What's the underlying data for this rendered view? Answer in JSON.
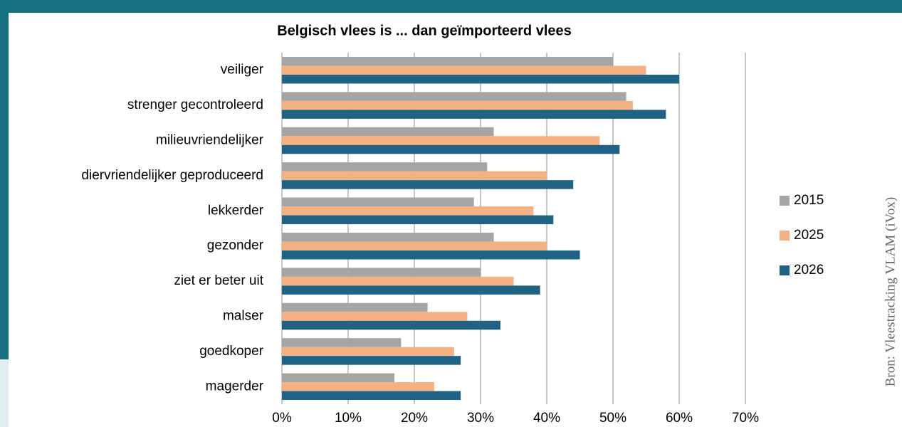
{
  "chart_data": {
    "type": "bar",
    "orientation": "horizontal",
    "title": "Belgisch vlees is ... dan geïmporteerd vlees",
    "source": "Bron: Vleestracking VLAM (iVox)",
    "categories": [
      "veiliger",
      "strenger gecontroleerd",
      "milieuvriendelijker",
      "diervriendelijker geproduceerd",
      "lekkerder",
      "gezonder",
      "ziet er beter uit",
      "malser",
      "goedkoper",
      "magerder"
    ],
    "series": [
      {
        "name": "2015",
        "color": "#a5a5a5",
        "values": [
          50,
          52,
          32,
          31,
          29,
          32,
          30,
          22,
          18,
          17
        ]
      },
      {
        "name": "2025",
        "color": "#f4b183",
        "values": [
          55,
          53,
          48,
          40,
          38,
          40,
          35,
          28,
          26,
          23
        ]
      },
      {
        "name": "2026",
        "color": "#1f6283",
        "values": [
          60,
          58,
          51,
          44,
          41,
          45,
          39,
          33,
          27,
          27
        ]
      }
    ],
    "xlim": [
      0,
      70
    ],
    "xticks": [
      {
        "value": 0,
        "label": "0%"
      },
      {
        "value": 10,
        "label": "10%"
      },
      {
        "value": 20,
        "label": "20%"
      },
      {
        "value": 30,
        "label": "30%"
      },
      {
        "value": 40,
        "label": "40%"
      },
      {
        "value": 50,
        "label": "50%"
      },
      {
        "value": 60,
        "label": "60%"
      },
      {
        "value": 70,
        "label": "70%"
      }
    ],
    "grid": true,
    "legend": "right"
  }
}
